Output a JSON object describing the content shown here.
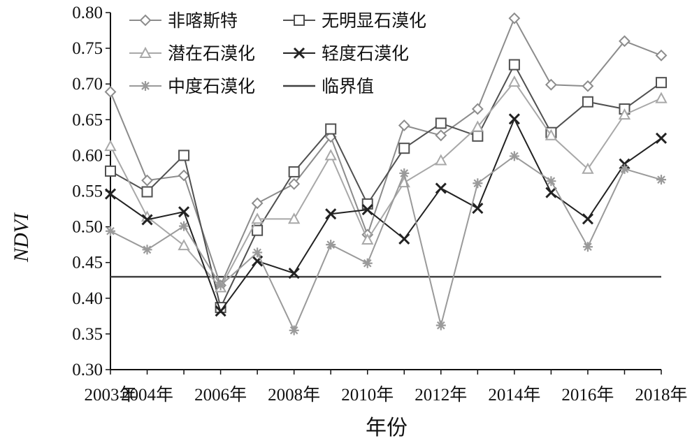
{
  "chart_data": {
    "type": "line",
    "xlabel": "年份",
    "ylabel": "NDVI",
    "ylim": [
      0.3,
      0.8
    ],
    "yticks": [
      "0.30",
      "0.35",
      "0.40",
      "0.45",
      "0.50",
      "0.55",
      "0.60",
      "0.65",
      "0.70",
      "0.75",
      "0.80"
    ],
    "x": [
      2003,
      2004,
      2005,
      2006,
      2007,
      2008,
      2009,
      2010,
      2011,
      2012,
      2013,
      2014,
      2015,
      2016,
      2017,
      2018
    ],
    "x_tick_labels": [
      "2003年",
      "2004年",
      "2006年",
      "2008年",
      "2010年",
      "2012年",
      "2014年",
      "2016年",
      "2018年"
    ],
    "grid": false,
    "legend_position": "top-left",
    "series": [
      {
        "name": "非喀斯特",
        "marker": "diamond",
        "color": "#8c8c8c",
        "values": [
          0.689,
          0.565,
          0.572,
          0.418,
          0.533,
          0.56,
          0.626,
          0.489,
          0.642,
          0.628,
          0.665,
          0.792,
          0.699,
          0.697,
          0.76,
          0.74
        ]
      },
      {
        "name": "无明显石漠化",
        "marker": "square",
        "color": "#505050",
        "values": [
          0.578,
          0.549,
          0.6,
          0.387,
          0.495,
          0.577,
          0.637,
          0.532,
          0.61,
          0.645,
          0.627,
          0.727,
          0.632,
          0.675,
          0.665,
          0.702
        ]
      },
      {
        "name": "潜在石漠化",
        "marker": "triangle",
        "color": "#a8a8a8",
        "values": [
          0.613,
          0.514,
          0.474,
          0.415,
          0.511,
          0.511,
          0.6,
          0.482,
          0.562,
          0.593,
          0.64,
          0.703,
          0.628,
          0.581,
          0.657,
          0.68
        ]
      },
      {
        "name": "轻度石漠化",
        "marker": "x",
        "color": "#222222",
        "values": [
          0.546,
          0.51,
          0.521,
          0.382,
          0.452,
          0.435,
          0.518,
          0.524,
          0.483,
          0.554,
          0.526,
          0.651,
          0.548,
          0.511,
          0.588,
          0.624
        ]
      },
      {
        "name": "中度石漠化",
        "marker": "star",
        "color": "#9a9a9a",
        "values": [
          0.494,
          0.468,
          0.501,
          0.418,
          0.464,
          0.355,
          0.475,
          0.449,
          0.575,
          0.362,
          0.561,
          0.599,
          0.564,
          0.472,
          0.581,
          0.566
        ]
      }
    ],
    "reference_line": {
      "name": "临界值",
      "value": 0.43,
      "color": "#404040"
    }
  }
}
